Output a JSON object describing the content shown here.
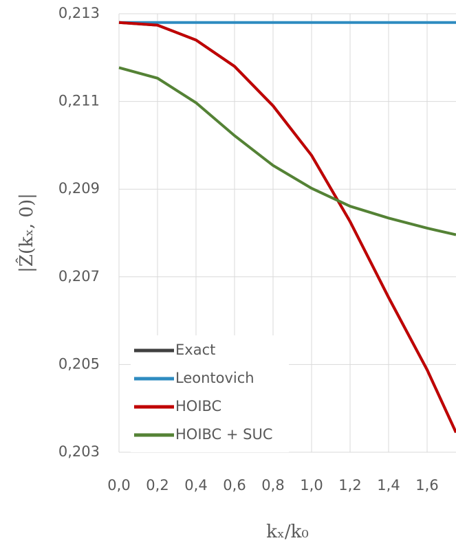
{
  "chart_data": {
    "type": "line",
    "x_label": "kₓ/k₀",
    "y_label": "|Ẑ(kₓ, 0)|",
    "x": [
      0,
      0.2,
      0.4,
      0.6,
      0.8,
      1.0,
      1.2,
      1.4,
      1.6,
      1.75
    ],
    "series": [
      {
        "name": "Exact",
        "color": "#404040",
        "values": [
          0.2128,
          0.21274,
          0.2124,
          0.2118,
          0.2109,
          0.20977,
          0.20826,
          0.20653,
          0.20488,
          0.20345
        ]
      },
      {
        "name": "Leontovich",
        "color": "#2e8bc0",
        "values": [
          0.2128,
          0.2128,
          0.2128,
          0.2128,
          0.2128,
          0.2128,
          0.2128,
          0.2128,
          0.2128,
          0.2128
        ]
      },
      {
        "name": "HOIBC",
        "color": "#c00000",
        "values": [
          0.2128,
          0.21274,
          0.2124,
          0.2118,
          0.2109,
          0.20977,
          0.20826,
          0.20653,
          0.20488,
          0.20345
        ]
      },
      {
        "name": "HOIBC + SUC",
        "color": "#548235",
        "values": [
          0.21177,
          0.21153,
          0.21097,
          0.21022,
          0.20954,
          0.20902,
          0.20861,
          0.20834,
          0.20811,
          0.20796
        ]
      }
    ],
    "xlim": [
      0,
      1.75
    ],
    "ylim": [
      0.203,
      0.213
    ],
    "xticks": [
      {
        "value": 0,
        "label": "0,0"
      },
      {
        "value": 0.2,
        "label": "0,2"
      },
      {
        "value": 0.4,
        "label": "0,4"
      },
      {
        "value": 0.6,
        "label": "0,6"
      },
      {
        "value": 0.8,
        "label": "0,8"
      },
      {
        "value": 1.0,
        "label": "1,0"
      },
      {
        "value": 1.2,
        "label": "1,2"
      },
      {
        "value": 1.4,
        "label": "1,4"
      },
      {
        "value": 1.6,
        "label": "1,6"
      }
    ],
    "yticks": [
      {
        "value": 0.203,
        "label": "0,203"
      },
      {
        "value": 0.205,
        "label": "0,205"
      },
      {
        "value": 0.207,
        "label": "0,207"
      },
      {
        "value": 0.209,
        "label": "0,209"
      },
      {
        "value": 0.211,
        "label": "0,211"
      },
      {
        "value": 0.213,
        "label": "0,213"
      }
    ],
    "grid": true,
    "legend": "lower-left"
  }
}
